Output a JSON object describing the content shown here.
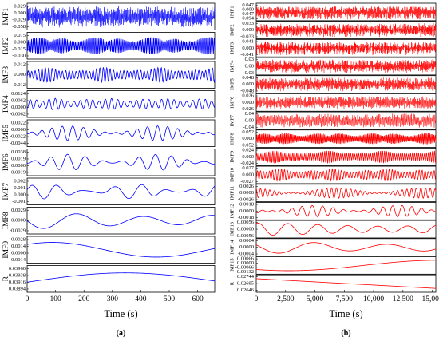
{
  "panels": [
    {
      "caption": "(a)",
      "color": "#0000ff",
      "xlabel": "Time (s)",
      "xlim": [
        0,
        660
      ],
      "xticks": [
        "0",
        "100",
        "200",
        "300",
        "400",
        "500",
        "600"
      ],
      "xtick_values": [
        0,
        100,
        200,
        300,
        400,
        500,
        600
      ],
      "rows": [
        {
          "name": "IMF1",
          "ticks": [
            "0.029",
            "0.000",
            "-0.029",
            "-0.058"
          ],
          "cycles": 260,
          "amp": 0.82,
          "style": "noise"
        },
        {
          "name": "IMF2",
          "ticks": [
            "0.015",
            "0.000",
            "-0.015",
            "-0.030"
          ],
          "cycles": 115,
          "amp": 0.7,
          "style": "burst"
        },
        {
          "name": "IMF3",
          "ticks": [
            "0.012",
            "0.000",
            "-0.012"
          ],
          "cycles": 55,
          "amp": 0.55,
          "style": "burst"
        },
        {
          "name": "IMF4",
          "ticks": [
            "0.0124",
            "0.0062",
            "0.0000",
            "-0.0062"
          ],
          "cycles": 30,
          "amp": 0.45,
          "style": "burst"
        },
        {
          "name": "IMF5",
          "ticks": [
            "0.0022",
            "0.0000",
            "-0.0022",
            "-0.0044"
          ],
          "cycles": 18,
          "amp": 0.55,
          "style": "wave"
        },
        {
          "name": "IMF6",
          "ticks": [
            "0.0038",
            "0.0019",
            "0.0000",
            "-0.0019"
          ],
          "cycles": 11,
          "amp": 0.6,
          "style": "wave"
        },
        {
          "name": "IMF7",
          "ticks": [
            "0.002",
            "0.001",
            "0.000",
            "-0.001"
          ],
          "cycles": 7,
          "amp": 0.55,
          "style": "wave"
        },
        {
          "name": "IMF8",
          "ticks": [
            "0.0029",
            "0.0000",
            "-0.0029"
          ],
          "cycles": 2.8,
          "amp": 0.6,
          "style": "smooth"
        },
        {
          "name": "IMF9",
          "ticks": [
            "0.0028",
            "0.0014",
            "0.0000",
            "-0.0014"
          ],
          "cycles": 0.9,
          "amp": 0.55,
          "style": "hump"
        },
        {
          "name": "R",
          "ticks": [
            "0.03960",
            "0.03938",
            "0.03916",
            "0.03894"
          ],
          "cycles": 0.5,
          "amp": 0.6,
          "style": "trend-hump"
        }
      ]
    },
    {
      "caption": "(b)",
      "color": "#ff0000",
      "xlabel": "Time (s)",
      "xlim": [
        0,
        15300
      ],
      "xticks": [
        "0",
        "2,500",
        "5,000",
        "7,500",
        "10,000",
        "12,500",
        "15,000"
      ],
      "xtick_values": [
        0,
        2500,
        5000,
        7500,
        10000,
        12500,
        15000
      ],
      "rows": [
        {
          "name": "IMF1",
          "ticks": [
            "0.047",
            "0.000",
            "-0.047",
            "-0.094"
          ],
          "cycles": 600,
          "amp": 0.85,
          "style": "noise"
        },
        {
          "name": "IMF2",
          "ticks": [
            "0.033",
            "0.000",
            "-0.033"
          ],
          "cycles": 500,
          "amp": 0.8,
          "style": "noise"
        },
        {
          "name": "IMF3",
          "ticks": [
            "0.041",
            "0.000",
            "-0.041"
          ],
          "cycles": 420,
          "amp": 0.8,
          "style": "noise"
        },
        {
          "name": "IMF4",
          "ticks": [
            "0.03",
            "0.00",
            "-0.03"
          ],
          "cycles": 340,
          "amp": 0.8,
          "style": "noise"
        },
        {
          "name": "IMF5",
          "ticks": [
            "0.048",
            "0.000",
            "-0.048"
          ],
          "cycles": 280,
          "amp": 0.8,
          "style": "noise"
        },
        {
          "name": "IMF6",
          "ticks": [
            "0.026",
            "0.000",
            "-0.026"
          ],
          "cycles": 220,
          "amp": 0.75,
          "style": "noise"
        },
        {
          "name": "IMF7",
          "ticks": [
            "0.04",
            "0.00",
            "-0.04"
          ],
          "cycles": 170,
          "amp": 0.8,
          "style": "noise"
        },
        {
          "name": "IMF8",
          "ticks": [
            "0.052",
            "0.000",
            "-0.052"
          ],
          "cycles": 130,
          "amp": 0.7,
          "style": "burst"
        },
        {
          "name": "IMF9",
          "ticks": [
            "0.024",
            "0.000",
            "-0.024"
          ],
          "cycles": 90,
          "amp": 0.7,
          "style": "burst"
        },
        {
          "name": "IMF10",
          "ticks": [
            "0.027",
            "0.000",
            "-0.027"
          ],
          "cycles": 60,
          "amp": 0.7,
          "style": "burst"
        },
        {
          "name": "IMF11",
          "ticks": [
            "0.0026",
            "0.0000",
            "-0.0026"
          ],
          "cycles": 38,
          "amp": 0.6,
          "style": "wave"
        },
        {
          "name": "IMF12",
          "ticks": [
            "0.0018",
            "0.0000",
            "-0.0018"
          ],
          "cycles": 18,
          "amp": 0.65,
          "style": "wave"
        },
        {
          "name": "IMF13",
          "ticks": [
            "0.00056",
            "0.00000",
            "-0.00056"
          ],
          "cycles": 6,
          "amp": 0.7,
          "style": "smooth"
        },
        {
          "name": "IMF14",
          "ticks": [
            "0.0004",
            "0.0000",
            "-0.0004"
          ],
          "cycles": 2.5,
          "amp": 0.7,
          "style": "smooth"
        },
        {
          "name": "IMF15",
          "ticks": [
            "0.00066",
            "0.00000",
            "-0.00066",
            "-0.00132"
          ],
          "cycles": 0.6,
          "amp": 0.6,
          "style": "hump"
        },
        {
          "name": "R",
          "ticks": [
            "0.02744",
            "0.02695",
            "0.02646"
          ],
          "cycles": 0,
          "amp": 0.7,
          "style": "decline"
        }
      ]
    }
  ],
  "chart_data": [
    {
      "type": "line",
      "title": "",
      "xlabel": "Time (s)",
      "xlim": [
        0,
        660
      ],
      "x_ticks": [
        0,
        100,
        200,
        300,
        400,
        500,
        600
      ],
      "series": [
        {
          "name": "IMF1",
          "y_ticks": [
            0.029,
            0.0,
            -0.029,
            -0.058
          ]
        },
        {
          "name": "IMF2",
          "y_ticks": [
            0.015,
            0.0,
            -0.015,
            -0.03
          ]
        },
        {
          "name": "IMF3",
          "y_ticks": [
            0.012,
            0.0,
            -0.012
          ]
        },
        {
          "name": "IMF4",
          "y_ticks": [
            0.0124,
            0.0062,
            0.0,
            -0.0062
          ]
        },
        {
          "name": "IMF5",
          "y_ticks": [
            0.0022,
            0.0,
            -0.0022,
            -0.0044
          ]
        },
        {
          "name": "IMF6",
          "y_ticks": [
            0.0038,
            0.0019,
            0.0,
            -0.0019
          ]
        },
        {
          "name": "IMF7",
          "y_ticks": [
            0.002,
            0.001,
            0.0,
            -0.001
          ]
        },
        {
          "name": "IMF8",
          "y_ticks": [
            0.0029,
            0.0,
            -0.0029
          ]
        },
        {
          "name": "IMF9",
          "y_ticks": [
            0.0028,
            0.0014,
            0.0,
            -0.0014
          ]
        },
        {
          "name": "R",
          "y_ticks": [
            0.0396,
            0.03938,
            0.03916,
            0.03894
          ]
        }
      ],
      "caption": "(a)"
    },
    {
      "type": "line",
      "title": "",
      "xlabel": "Time (s)",
      "xlim": [
        0,
        15300
      ],
      "x_ticks": [
        0,
        2500,
        5000,
        7500,
        10000,
        12500,
        15000
      ],
      "series": [
        {
          "name": "IMF1",
          "y_ticks": [
            0.047,
            0.0,
            -0.047,
            -0.094
          ]
        },
        {
          "name": "IMF2",
          "y_ticks": [
            0.033,
            0.0,
            -0.033
          ]
        },
        {
          "name": "IMF3",
          "y_ticks": [
            0.041,
            0.0,
            -0.041
          ]
        },
        {
          "name": "IMF4",
          "y_ticks": [
            0.03,
            0.0,
            -0.03
          ]
        },
        {
          "name": "IMF5",
          "y_ticks": [
            0.048,
            0.0,
            -0.048
          ]
        },
        {
          "name": "IMF6",
          "y_ticks": [
            0.026,
            0.0,
            -0.026
          ]
        },
        {
          "name": "IMF7",
          "y_ticks": [
            0.04,
            0.0,
            -0.04
          ]
        },
        {
          "name": "IMF8",
          "y_ticks": [
            0.052,
            0.0,
            -0.052
          ]
        },
        {
          "name": "IMF9",
          "y_ticks": [
            0.024,
            0.0,
            -0.024
          ]
        },
        {
          "name": "IMF10",
          "y_ticks": [
            0.027,
            0.0,
            -0.027
          ]
        },
        {
          "name": "IMF11",
          "y_ticks": [
            0.0026,
            0.0,
            -0.0026
          ]
        },
        {
          "name": "IMF12",
          "y_ticks": [
            0.0018,
            0.0,
            -0.0018
          ]
        },
        {
          "name": "IMF13",
          "y_ticks": [
            0.00056,
            0.0,
            -0.00056
          ]
        },
        {
          "name": "IMF14",
          "y_ticks": [
            0.0004,
            0.0,
            -0.0004
          ]
        },
        {
          "name": "IMF15",
          "y_ticks": [
            0.00066,
            0.0,
            -0.00066,
            -0.00132
          ]
        },
        {
          "name": "R",
          "y_ticks": [
            0.02744,
            0.02695,
            0.02646
          ]
        }
      ],
      "caption": "(b)"
    }
  ]
}
